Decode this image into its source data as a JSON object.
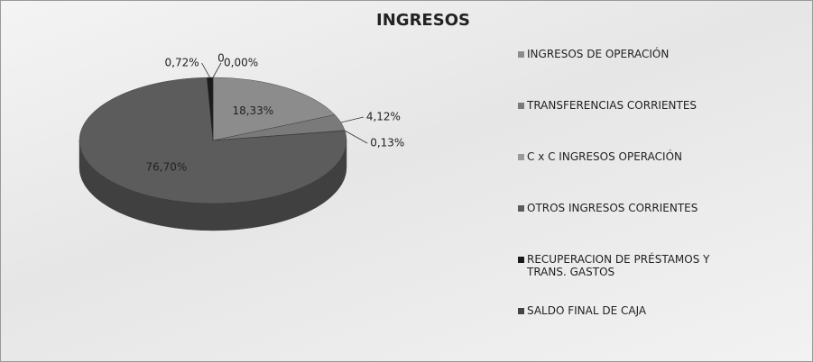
{
  "chart_data": {
    "type": "pie3d",
    "title": "INGRESOS",
    "categories": [
      "INGRESOS DE OPERACIÓN",
      "TRANSFERENCIAS CORRIENTES",
      "C x C INGRESOS OPERACIÓN",
      "OTROS INGRESOS CORRIENTES",
      "RECUPERACION DE PRÉSTAMOS Y TRANS. GASTOS",
      "SALDO FINAL DE CAJA"
    ],
    "values": [
      18.33,
      4.12,
      0.13,
      76.7,
      0.72,
      0.0
    ],
    "value_labels": [
      "18,33%",
      "4,12%",
      "0,13%",
      "76,70%",
      "0,72%",
      "0,00%"
    ],
    "colors": [
      "#8c8c8c",
      "#7a7a7a",
      "#9a9a9a",
      "#5c5c5c",
      "#1a1a1a",
      "#444444"
    ],
    "annotations": [
      "0"
    ],
    "legend": "right"
  }
}
